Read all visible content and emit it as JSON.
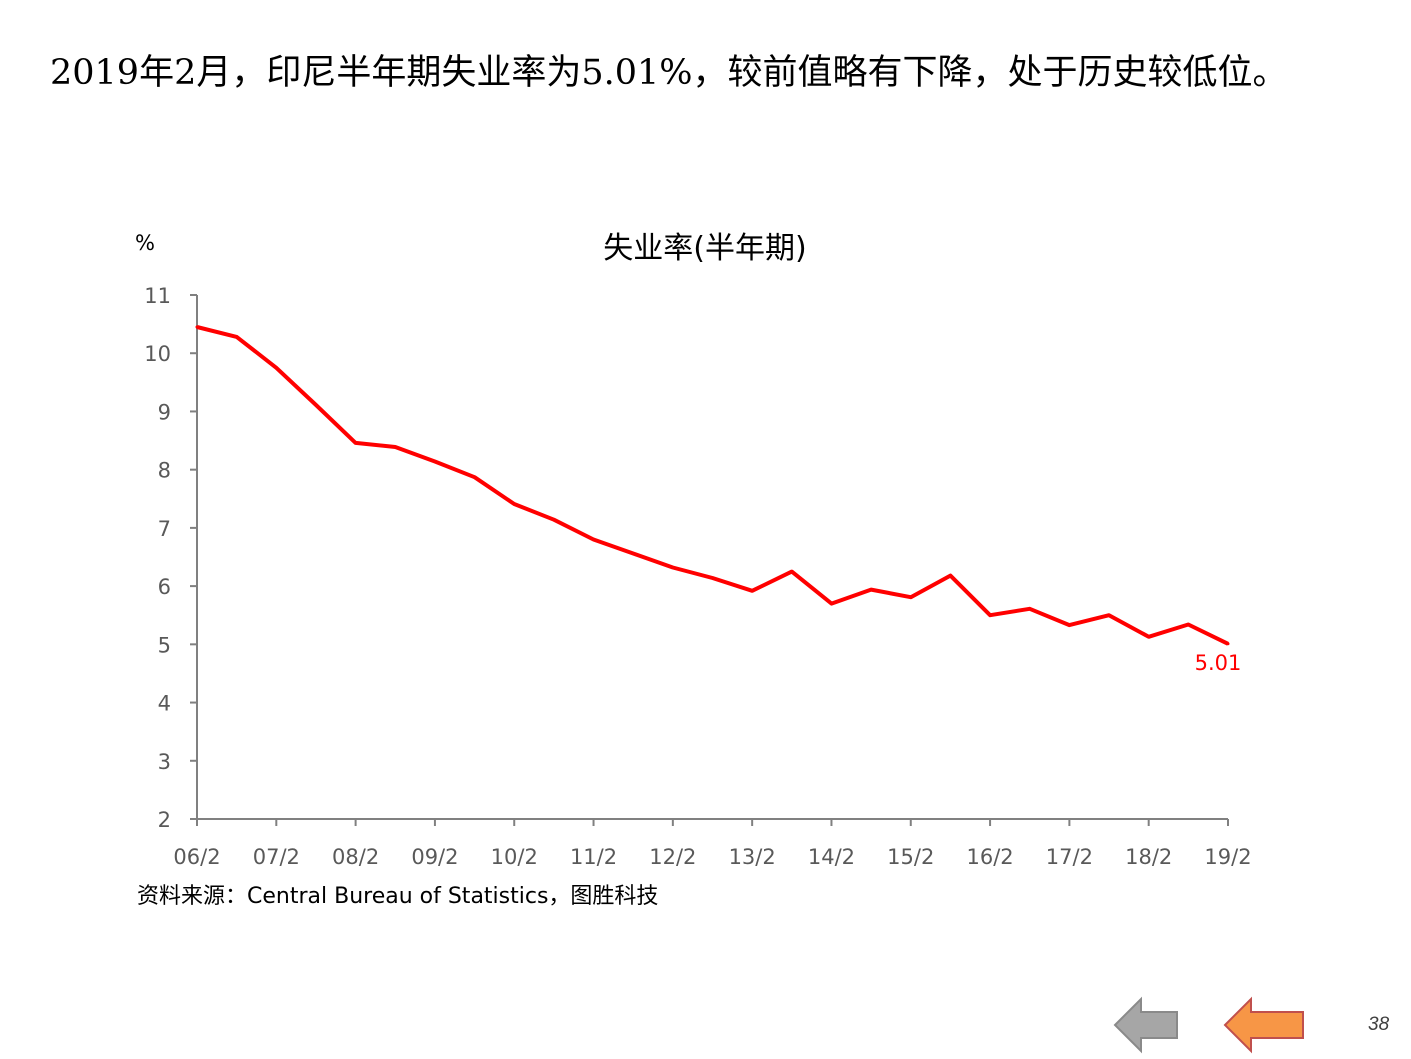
{
  "headline": "2019年2月，印尼半年期失业率为5.01%，较前值略有下降，处于历史较低位。",
  "source": "资料来源：Central Bureau of Statistics，图胜科技",
  "page_number": "38",
  "nav": {
    "back_icon": "arrow-left-icon",
    "next_icon": "arrow-left-icon",
    "back_color": "#a6a6a6",
    "next_color": "#f79646"
  },
  "chart_data": {
    "type": "line",
    "title": "失业率(半年期)",
    "ylabel": "%",
    "xlabel": "",
    "ylim": [
      2,
      11
    ],
    "yticks": [
      2,
      3,
      4,
      5,
      6,
      7,
      8,
      9,
      10,
      11
    ],
    "x_tick_labels": [
      "06/2",
      "07/2",
      "08/2",
      "09/2",
      "10/2",
      "11/2",
      "12/2",
      "13/2",
      "14/2",
      "15/2",
      "16/2",
      "17/2",
      "18/2",
      "19/2"
    ],
    "grid": false,
    "legend": "none",
    "series": [
      {
        "color": "#ff0000",
        "x": [
          "06/2",
          "06/8",
          "07/2",
          "07/8",
          "08/2",
          "08/8",
          "09/2",
          "09/8",
          "10/2",
          "10/8",
          "11/2",
          "11/8",
          "12/2",
          "12/8",
          "13/2",
          "13/8",
          "14/2",
          "14/8",
          "15/2",
          "15/8",
          "16/2",
          "16/8",
          "17/2",
          "17/8",
          "18/2",
          "18/8",
          "19/2"
        ],
        "values": [
          10.45,
          10.28,
          9.75,
          9.11,
          8.46,
          8.39,
          8.14,
          7.87,
          7.41,
          7.14,
          6.8,
          6.56,
          6.32,
          6.14,
          5.92,
          6.25,
          5.7,
          5.94,
          5.81,
          6.18,
          5.5,
          5.61,
          5.33,
          5.5,
          5.13,
          5.34,
          5.01
        ]
      }
    ],
    "annotations": [
      {
        "x": "19/2",
        "text": "5.01",
        "color": "#ff0000"
      }
    ]
  }
}
